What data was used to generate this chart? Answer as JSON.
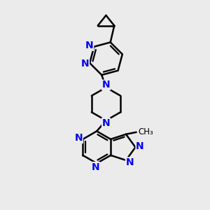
{
  "bg_color": "#ebebeb",
  "bond_color": "#000000",
  "atom_color": "#0000ee",
  "line_width": 1.8,
  "font_size": 10,
  "figsize": [
    3.0,
    3.0
  ],
  "dpi": 100,
  "xlim": [
    0,
    10
  ],
  "ylim": [
    0,
    10
  ]
}
